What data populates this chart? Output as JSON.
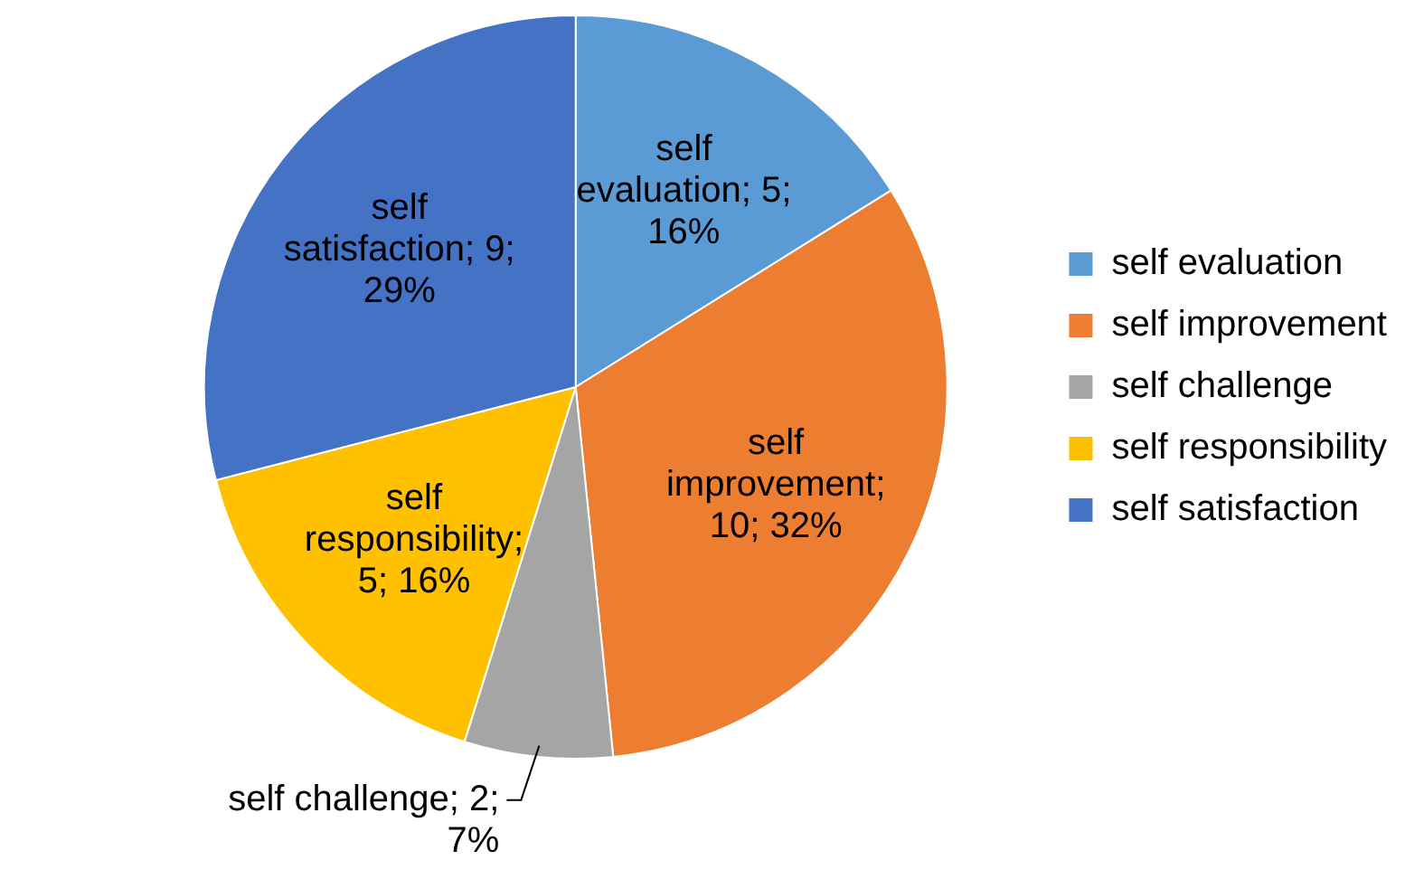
{
  "chart_data": {
    "type": "pie",
    "categories": [
      "self evaluation",
      "self improvement",
      "self challenge",
      "self responsibility",
      "self satisfaction"
    ],
    "values": [
      5,
      10,
      2,
      5,
      9
    ],
    "colors": [
      "#5b9bd5",
      "#ed7d31",
      "#a5a5a5",
      "#ffc000",
      "#4472c4"
    ],
    "value_labels": [
      "self evaluation; 5; 16%",
      "self improvement; 10; 32%",
      "self challenge; 2; 7%",
      "self responsibility; 5; 16%",
      "self satisfaction; 9; 29%"
    ],
    "legend": "right"
  }
}
